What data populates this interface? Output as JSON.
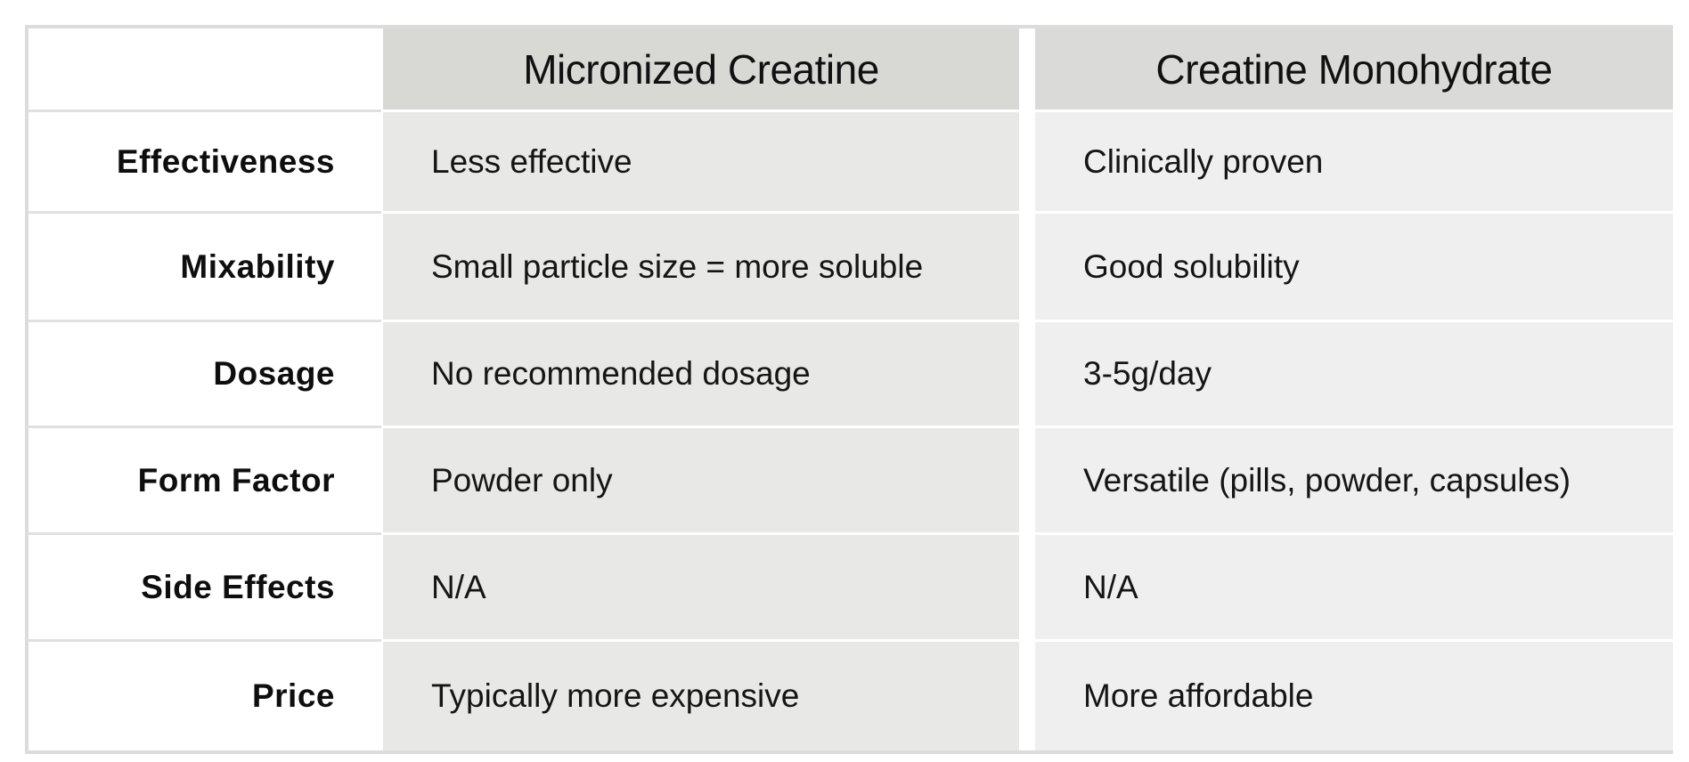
{
  "table": {
    "columns": [
      "",
      "Micronized Creatine",
      "Creatine Monohydrate"
    ],
    "rows": [
      {
        "label": "Effectiveness",
        "micronized": "Less effective",
        "monohydrate": "Clinically proven"
      },
      {
        "label": "Mixability",
        "micronized": "Small particle size = more soluble",
        "monohydrate": "Good solubility"
      },
      {
        "label": "Dosage",
        "micronized": "No recommended dosage",
        "monohydrate": "3-5g/day"
      },
      {
        "label": "Form Factor",
        "micronized": "Powder only",
        "monohydrate": "Versatile (pills, powder, capsules)"
      },
      {
        "label": "Side Effects",
        "micronized": "N/A",
        "monohydrate": "N/A"
      },
      {
        "label": "Price",
        "micronized": "Typically more expensive",
        "monohydrate": "More affordable"
      }
    ]
  },
  "colors": {
    "header_bg": "#d8d8d5",
    "micronized_column_bg": "#e8e8e6",
    "monohydrate_column_bg": "#efefef",
    "border": "#dcdcdb"
  }
}
